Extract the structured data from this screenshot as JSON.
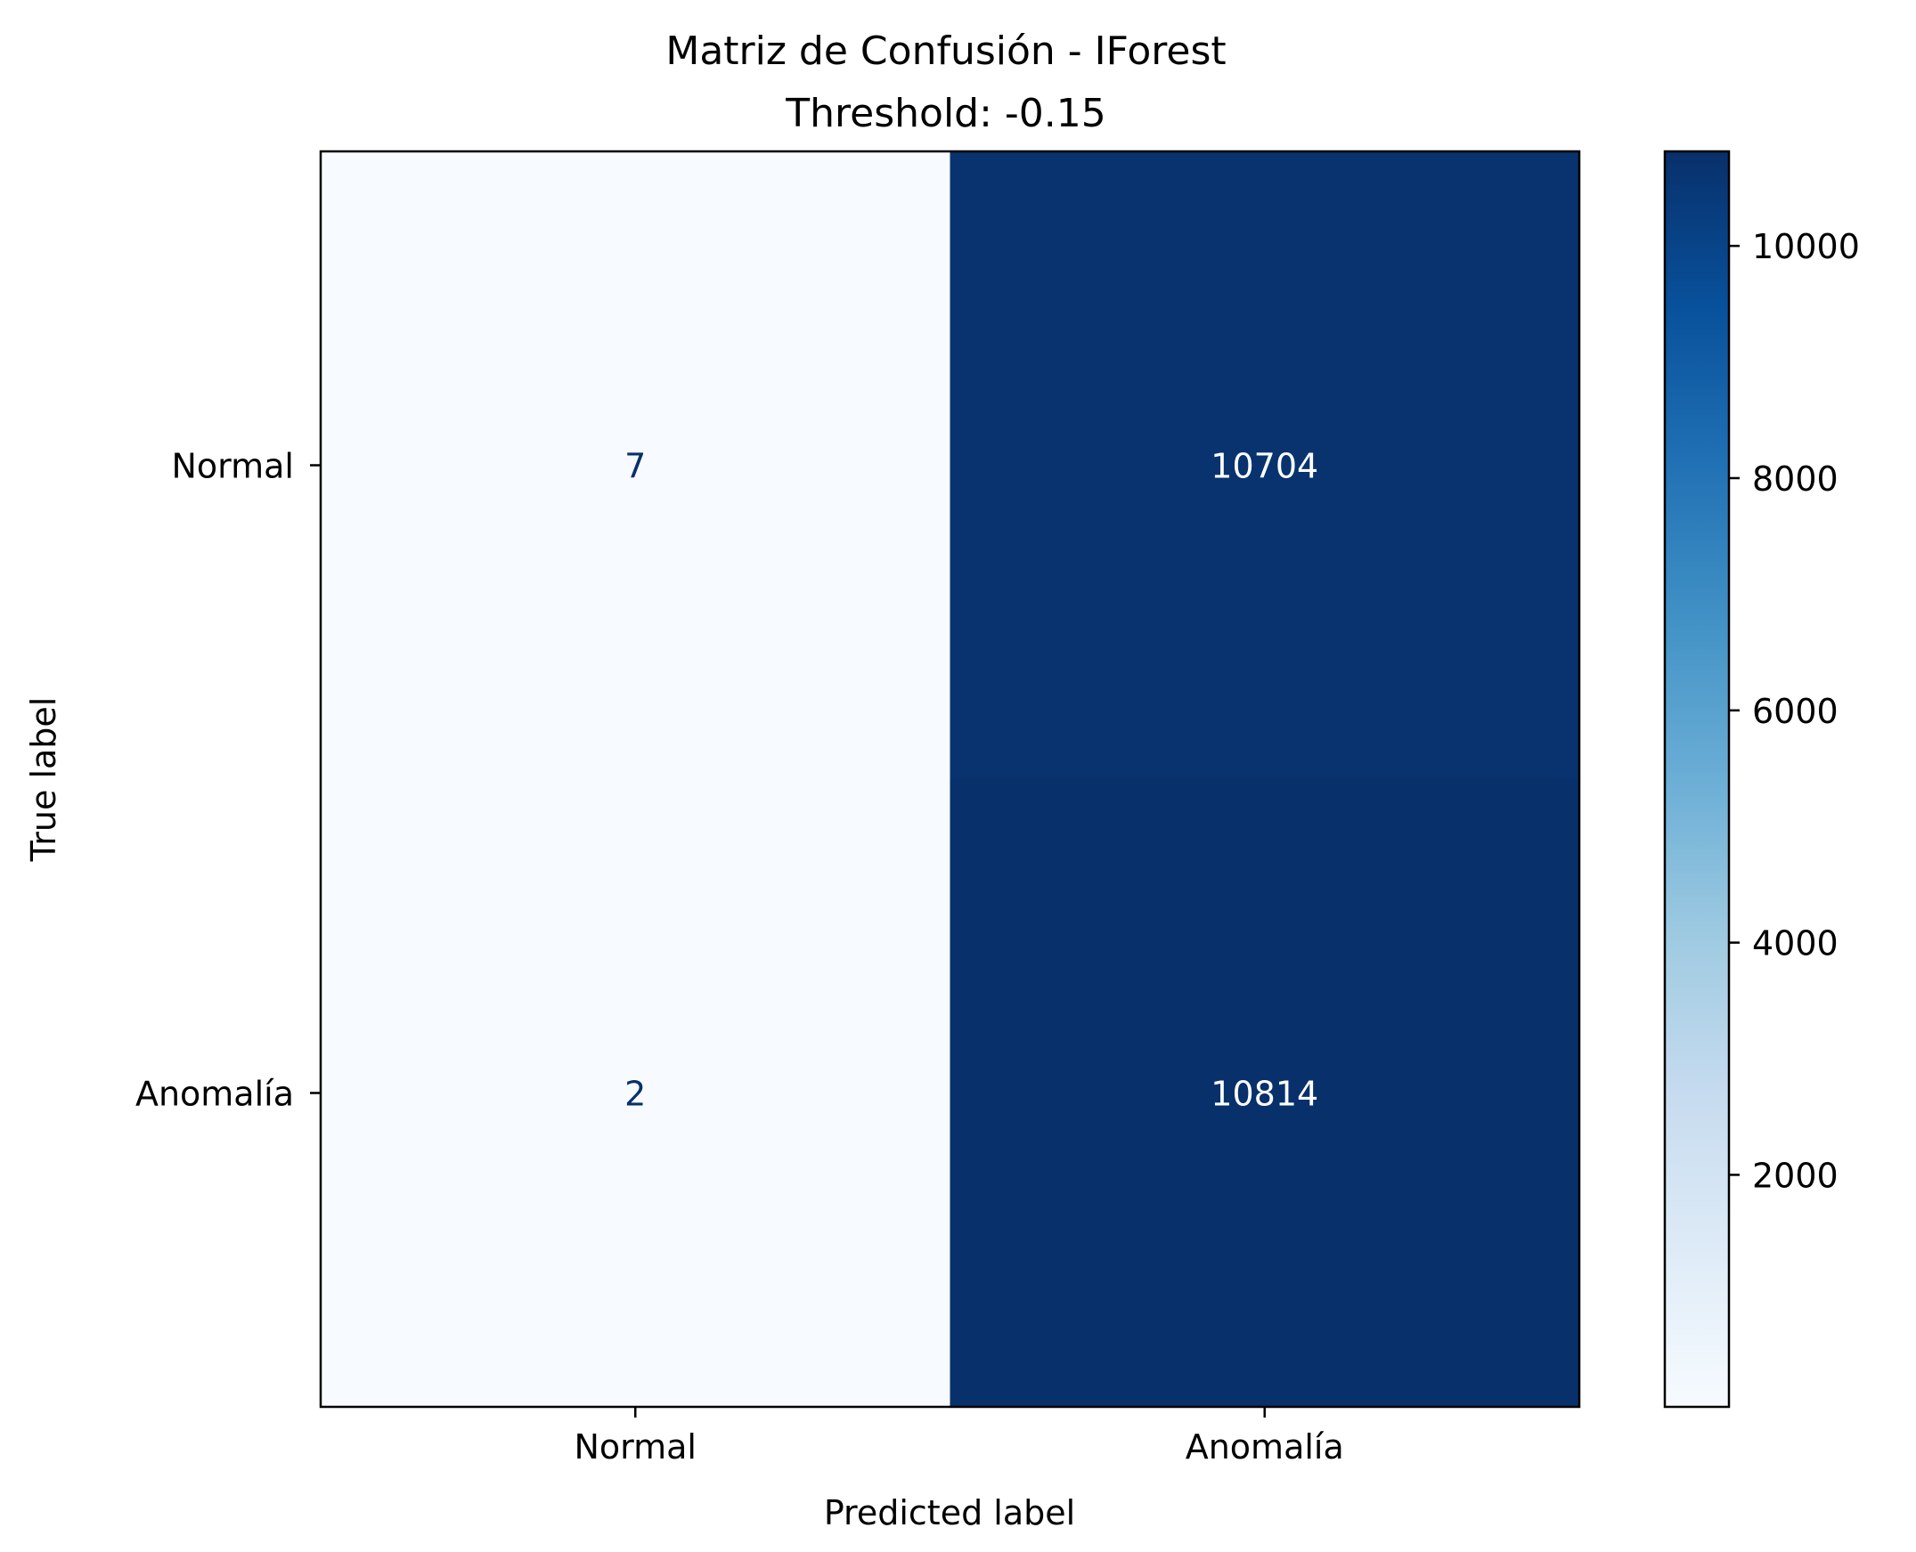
{
  "chart_data": {
    "type": "heatmap",
    "title": "Matriz de Confusión - IForest",
    "subtitle": "Threshold: -0.15",
    "xlabel": "Predicted label",
    "ylabel": "True label",
    "x_categories": [
      "Normal",
      "Anomalía"
    ],
    "y_categories": [
      "Normal",
      "Anomalía"
    ],
    "values": [
      [
        7,
        10704
      ],
      [
        2,
        10814
      ]
    ],
    "colormap": "Blues",
    "colorbar": {
      "range": [
        2,
        10814
      ],
      "ticks": [
        2000,
        4000,
        6000,
        8000,
        10000
      ],
      "tick_labels": [
        "2000",
        "4000",
        "6000",
        "8000",
        "10000"
      ]
    },
    "colors": {
      "low": "#f7fbff",
      "high": "#08306b",
      "text_on_light": "#08306b",
      "text_on_dark": "#ffffff"
    }
  }
}
